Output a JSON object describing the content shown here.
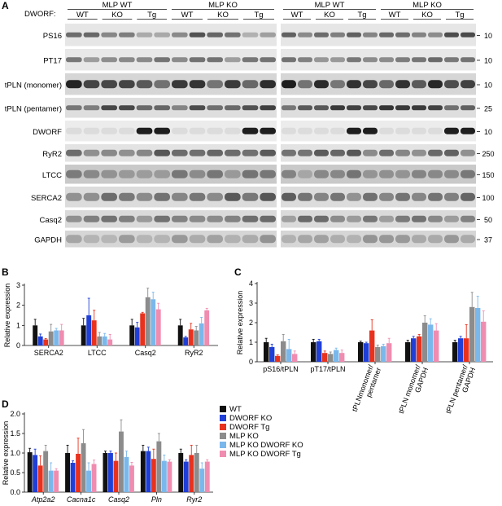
{
  "panel_letters": [
    "A",
    "B",
    "C",
    "D"
  ],
  "blot": {
    "dworf_label": "DWORF:",
    "groups": [
      {
        "title": "MLP WT",
        "subs": [
          "WT",
          "KO",
          "Tg"
        ]
      },
      {
        "title": "MLP KO",
        "subs": [
          "WT",
          "KO",
          "Tg"
        ]
      },
      {
        "title": "MLP WT",
        "subs": [
          "WT",
          "KO",
          "Tg"
        ]
      },
      {
        "title": "MLP KO",
        "subs": [
          "WT",
          "KO",
          "Tg"
        ]
      }
    ],
    "rows": [
      {
        "label": "PS16",
        "mw": "10"
      },
      {
        "label": "PT17",
        "mw": "10"
      },
      {
        "label": "tPLN (monomer)",
        "mw": "10"
      },
      {
        "label": "tPLN (pentamer)",
        "mw": "25"
      },
      {
        "label": "DWORF",
        "mw": "10"
      },
      {
        "label": "RyR2",
        "mw": "250"
      },
      {
        "label": "LTCC",
        "mw": "150"
      },
      {
        "label": "SERCA2",
        "mw": "100"
      },
      {
        "label": "Casq2",
        "mw": "50"
      },
      {
        "label": "GAPDH",
        "mw": "37"
      }
    ]
  },
  "legend": [
    {
      "name": "WT",
      "color": "#111111"
    },
    {
      "name": "DWORF KO",
      "color": "#1f3fd6"
    },
    {
      "name": "DWORF Tg",
      "color": "#e8321e"
    },
    {
      "name": "MLP KO",
      "color": "#8c8c8c"
    },
    {
      "name": "MLP KO DWORF KO",
      "color": "#7ab8ec"
    },
    {
      "name": "MLP KO DWORF Tg",
      "color": "#f08cb0"
    }
  ],
  "chart_data": [
    {
      "panel": "B",
      "type": "bar",
      "ylabel": "Relative expression",
      "ylim": [
        0,
        3
      ],
      "yticks": [
        0,
        1,
        2,
        3
      ],
      "categories": [
        "SERCA2",
        "LTCC",
        "Casq2",
        "RyR2"
      ],
      "series": [
        {
          "name": "WT",
          "values": [
            1.0,
            1.0,
            1.0,
            1.0
          ],
          "errors": [
            0.3,
            0.35,
            0.3,
            0.3
          ]
        },
        {
          "name": "DWORF KO",
          "values": [
            0.45,
            1.5,
            0.9,
            0.4
          ],
          "errors": [
            0.12,
            0.85,
            0.25,
            0.05
          ]
        },
        {
          "name": "DWORF Tg",
          "values": [
            0.3,
            1.25,
            1.6,
            0.8
          ],
          "errors": [
            0.05,
            0.5,
            0.05,
            0.3
          ]
        },
        {
          "name": "MLP KO",
          "values": [
            0.7,
            0.45,
            2.4,
            0.75
          ],
          "errors": [
            0.35,
            0.2,
            0.45,
            0.2
          ]
        },
        {
          "name": "MLP KO DWORF KO",
          "values": [
            0.75,
            0.45,
            2.3,
            1.1
          ],
          "errors": [
            0.1,
            0.15,
            0.35,
            0.3
          ]
        },
        {
          "name": "MLP KO DWORF Tg",
          "values": [
            0.75,
            0.3,
            1.8,
            1.75
          ],
          "errors": [
            0.3,
            0.25,
            0.3,
            0.1
          ]
        }
      ]
    },
    {
      "panel": "C",
      "type": "bar",
      "ylabel": "Relative expression",
      "ylim": [
        0,
        4
      ],
      "yticks": [
        0,
        1,
        2,
        3,
        4
      ],
      "categories": [
        "pS16/tPLN",
        "pT17/tPLN",
        "tPLNmonomer/\npentamer",
        "tPLN monomer/\nGAPDH",
        "tPLN pentamer/\nGAPDH"
      ],
      "series": [
        {
          "name": "WT",
          "values": [
            1.0,
            1.0,
            1.0,
            1.0,
            1.0
          ],
          "errors": [
            0.2,
            0.15,
            0.05,
            0.1,
            0.1
          ]
        },
        {
          "name": "DWORF KO",
          "values": [
            0.75,
            1.05,
            0.95,
            1.2,
            1.2
          ],
          "errors": [
            0.15,
            0.1,
            0.05,
            0.1,
            0.1
          ]
        },
        {
          "name": "DWORF Tg",
          "values": [
            0.3,
            0.45,
            1.6,
            1.3,
            1.2
          ],
          "errors": [
            0.05,
            0.1,
            0.55,
            0.1,
            0.7
          ]
        },
        {
          "name": "MLP KO",
          "values": [
            1.05,
            0.4,
            0.75,
            2.0,
            2.8
          ],
          "errors": [
            0.35,
            0.1,
            0.1,
            0.35,
            0.75
          ]
        },
        {
          "name": "MLP KO DWORF KO",
          "values": [
            0.65,
            0.6,
            0.8,
            1.9,
            2.75
          ],
          "errors": [
            0.5,
            0.1,
            0.1,
            0.3,
            0.6
          ]
        },
        {
          "name": "MLP KO DWORF Tg",
          "values": [
            0.4,
            0.45,
            0.95,
            1.6,
            2.05
          ],
          "errors": [
            0.15,
            0.15,
            0.25,
            0.35,
            0.55
          ]
        }
      ]
    },
    {
      "panel": "D",
      "type": "bar",
      "ylabel": "Relative expression",
      "ylim": [
        0,
        2
      ],
      "yticks": [
        "0.0",
        "0.5",
        "1.0",
        "1.5",
        "2.0"
      ],
      "categories": [
        "Atp2a2",
        "Cacna1c",
        "Casq2",
        "Pln",
        "Ryr2"
      ],
      "series": [
        {
          "name": "WT",
          "values": [
            1.02,
            1.0,
            1.0,
            1.05,
            1.0
          ],
          "errors": [
            0.1,
            0.2,
            0.05,
            0.15,
            0.1
          ]
        },
        {
          "name": "DWORF KO",
          "values": [
            0.95,
            0.75,
            1.0,
            1.05,
            0.78
          ],
          "errors": [
            0.15,
            0.05,
            0.05,
            0.1,
            0.05
          ]
        },
        {
          "name": "DWORF Tg",
          "values": [
            0.68,
            0.98,
            0.8,
            0.85,
            0.95
          ],
          "errors": [
            0.25,
            0.4,
            0.2,
            0.25,
            0.25
          ]
        },
        {
          "name": "MLP KO",
          "values": [
            1.05,
            1.25,
            1.55,
            1.3,
            1.0
          ],
          "errors": [
            0.15,
            0.35,
            0.3,
            0.2,
            0.2
          ]
        },
        {
          "name": "MLP KO DWORF KO",
          "values": [
            0.55,
            0.55,
            0.9,
            0.8,
            0.6
          ],
          "errors": [
            0.2,
            0.2,
            0.15,
            0.15,
            0.15
          ]
        },
        {
          "name": "MLP KO DWORF Tg",
          "values": [
            0.55,
            0.72,
            0.68,
            0.78,
            0.78
          ],
          "errors": [
            0.05,
            0.1,
            0.08,
            0.05,
            0.05
          ]
        }
      ]
    }
  ]
}
